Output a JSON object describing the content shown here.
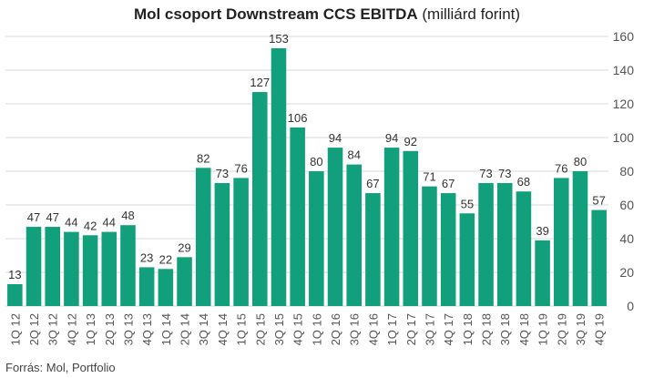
{
  "title_bold": "Mol csoport Downstream CCS EBITDA",
  "title_normal": "(milliárd forint)",
  "source": "Forrás: Mol, Portfolio",
  "colors": {
    "bar": "#11a07b",
    "grid": "#d9d9d9",
    "text": "#333333",
    "axis_text": "#555555"
  },
  "chart_data": {
    "type": "bar",
    "title": "Mol csoport Downstream CCS EBITDA (milliárd forint)",
    "categories": [
      "1Q 12",
      "2Q 12",
      "3Q 12",
      "4Q 12",
      "1Q 13",
      "2Q 13",
      "3Q 13",
      "4Q 13",
      "1Q 14",
      "2Q 14",
      "3Q 14",
      "4Q 14",
      "1Q 15",
      "2Q 15",
      "3Q 15",
      "4Q 15",
      "1Q 16",
      "2Q 16",
      "3Q 16",
      "4Q 16",
      "1Q 17",
      "2Q 17",
      "3Q 17",
      "4Q 17",
      "1Q 18",
      "2Q 18",
      "3Q 18",
      "4Q 18",
      "1Q 19",
      "2Q 19",
      "3Q 19",
      "4Q 19"
    ],
    "values": [
      13,
      47,
      47,
      44,
      42,
      44,
      48,
      23,
      22,
      29,
      82,
      73,
      76,
      127,
      153,
      106,
      80,
      94,
      84,
      67,
      94,
      92,
      71,
      67,
      55,
      73,
      73,
      68,
      39,
      76,
      80,
      57
    ],
    "ylim": [
      0,
      160
    ],
    "yticks": [
      0,
      20,
      40,
      60,
      80,
      100,
      120,
      140,
      160
    ],
    "y_axis_side": "right",
    "grid": true,
    "data_labels": true
  }
}
